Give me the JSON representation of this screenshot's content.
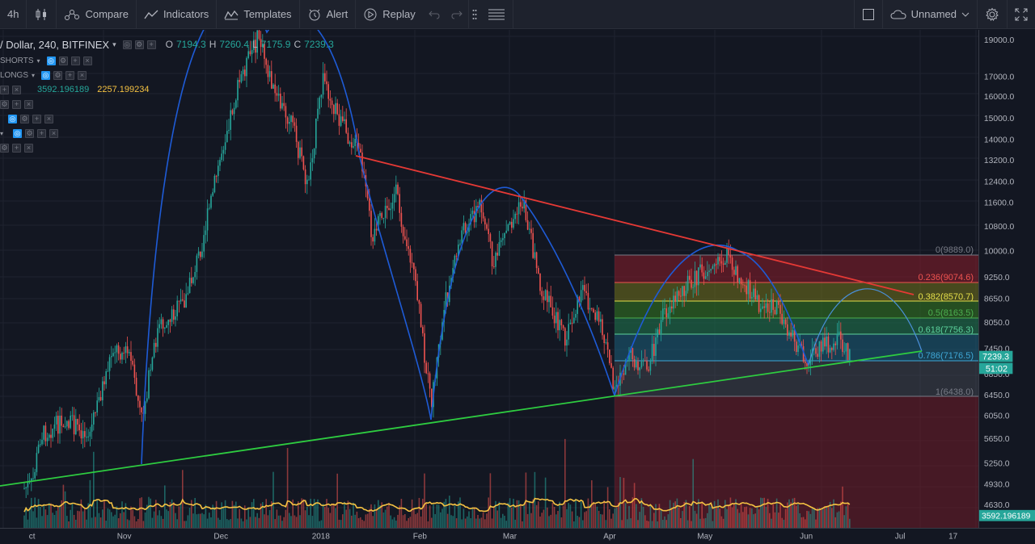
{
  "toolbar": {
    "interval": "4h",
    "compare_label": "Compare",
    "indicators_label": "Indicators",
    "templates_label": "Templates",
    "alert_label": "Alert",
    "replay_label": "Replay",
    "layout_name": "Unnamed"
  },
  "legend": {
    "symbol": "/ Dollar, 240, BITFINEX",
    "open_key": "O",
    "open": "7194.3",
    "high_key": "H",
    "high": "7260.4",
    "low_key": "L",
    "low": "7175.9",
    "close_key": "C",
    "close": "7239.3",
    "shorts_label": "SHORTS",
    "longs_label": "LONGS",
    "vol_value_1": "3592.196189",
    "vol_value_2": "2257.199234"
  },
  "fib": {
    "levels": [
      {
        "label": "0(9889.0)",
        "color": "#787b86"
      },
      {
        "label": "0.236(9074.6)",
        "color": "#ef5350"
      },
      {
        "label": "0.382(8570.7)",
        "color": "#c9c944"
      },
      {
        "label": "0.5(8163.5)",
        "color": "#4caf50"
      },
      {
        "label": "0.618(7756.3)",
        "color": "#5dd39e"
      },
      {
        "label": "0.786(7176.5)",
        "color": "#3fa7d6"
      },
      {
        "label": "1(6438.0)",
        "color": "#787b86"
      }
    ]
  },
  "price_axis": {
    "ticks": [
      "19000.0",
      "17000.0",
      "16000.0",
      "15000.0",
      "14000.0",
      "13200.0",
      "12400.0",
      "11600.0",
      "10800.0",
      "10000.0",
      "9250.0",
      "8650.0",
      "8050.0",
      "7450.0",
      "6850.0",
      "6450.0",
      "6050.0",
      "5650.0",
      "5250.0",
      "4930.0",
      "4630.0"
    ],
    "last_price": "7239.3",
    "countdown": "51:02",
    "volume_value": "3592.196189"
  },
  "time_axis": {
    "labels": [
      "ct",
      "Nov",
      "Dec",
      "2018",
      "Feb",
      "Mar",
      "Apr",
      "May",
      "Jun",
      "Jul",
      "17"
    ]
  },
  "colors": {
    "up": "#26a69a",
    "down": "#ef5350",
    "resistance": "#e53935",
    "support": "#2ecc40",
    "arc": "#1e5bd6",
    "volume_ma": "#f5c242"
  }
}
